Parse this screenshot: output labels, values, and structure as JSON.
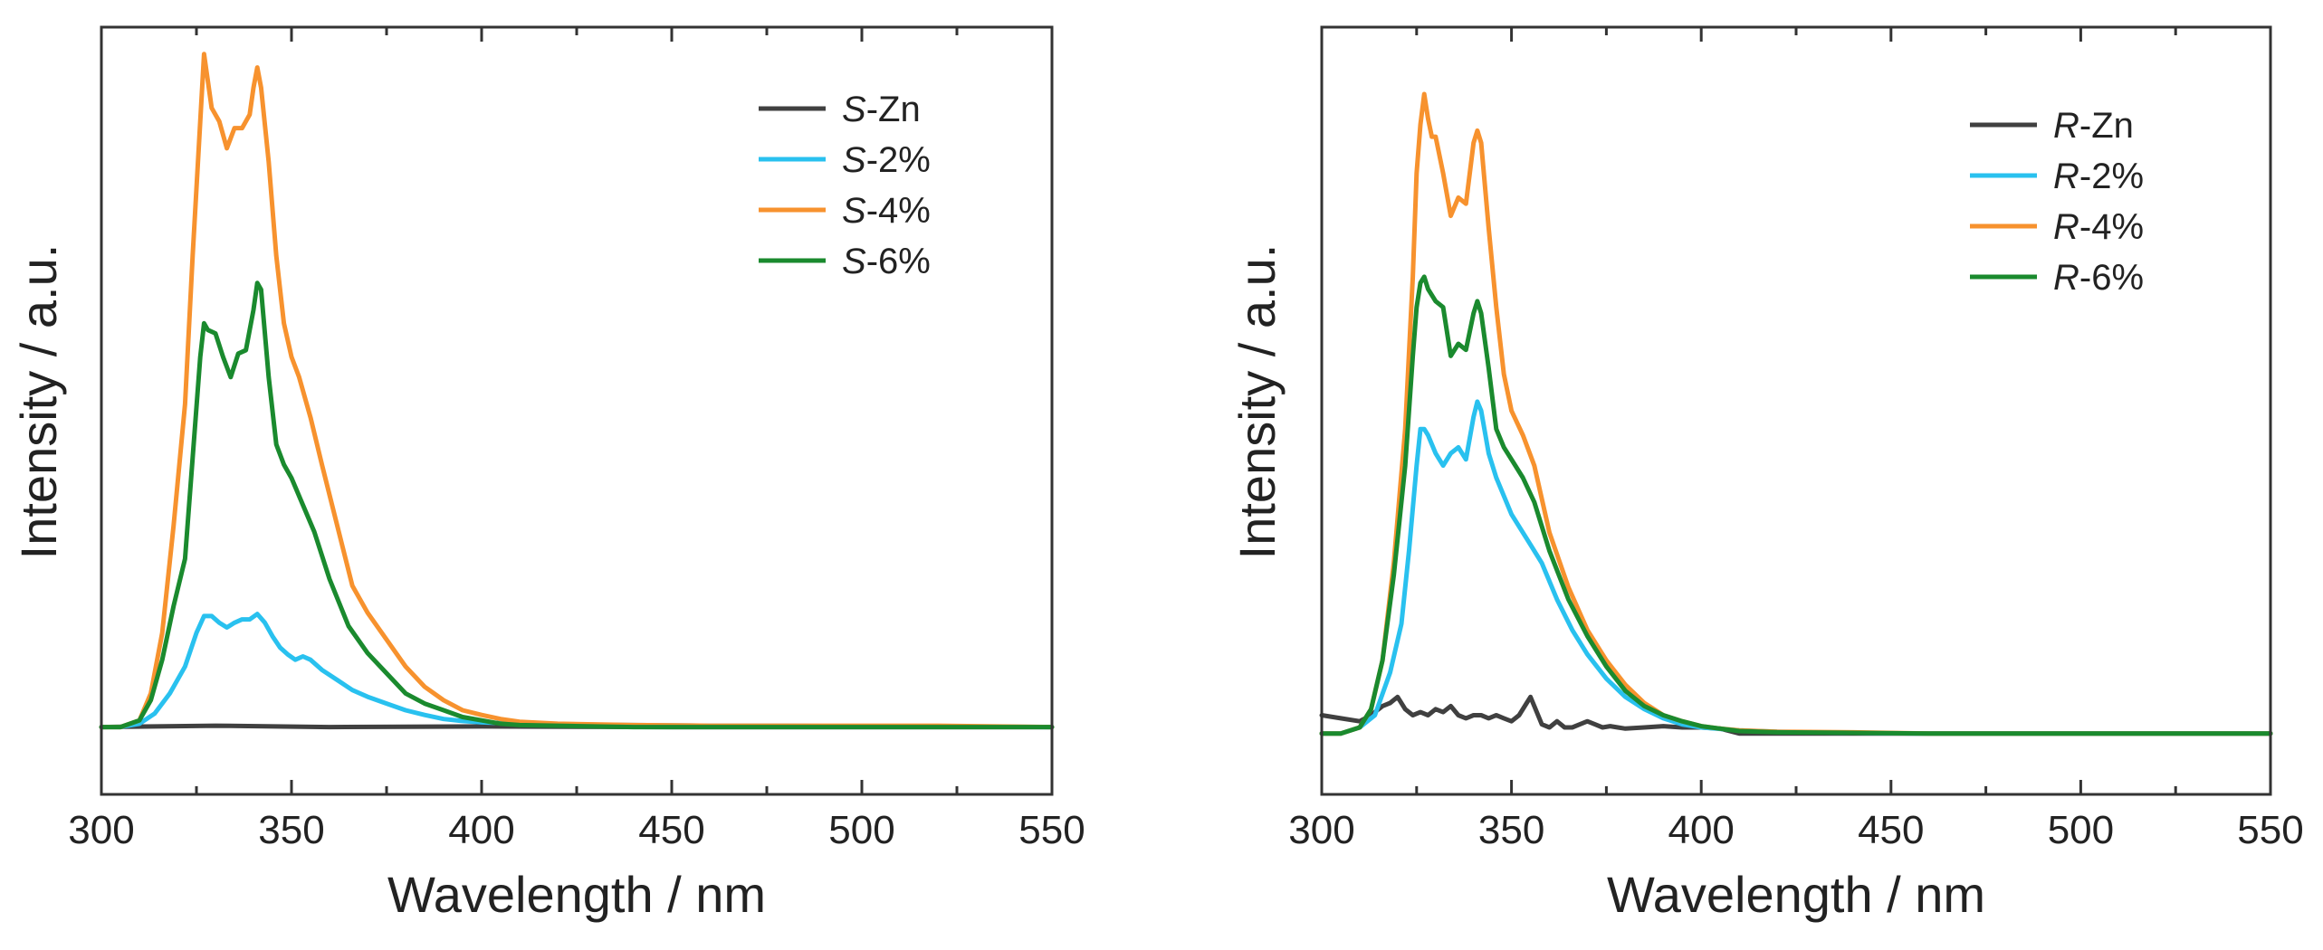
{
  "chart_data": [
    {
      "type": "line",
      "xlabel": "Wavelength / nm",
      "ylabel": "Intensity / a.u.",
      "xlim": [
        300,
        550
      ],
      "ylim": [
        -0.1,
        1.04
      ],
      "xticks": [
        "300",
        "350",
        "400",
        "450",
        "500",
        "550"
      ],
      "legend_position": "top-right",
      "series": [
        {
          "name": "Zn",
          "prefix": "S",
          "color": "#404040",
          "x": [
            300,
            330,
            360,
            400,
            450,
            500,
            550
          ],
          "y": [
            0.0,
            0.002,
            0.0,
            0.001,
            0.0,
            0.0,
            0.0
          ]
        },
        {
          "name": "2%",
          "prefix": "S",
          "color": "#29c1ef",
          "x": [
            300,
            305,
            310,
            314,
            318,
            322,
            325,
            327,
            329,
            331,
            333,
            335,
            337,
            339,
            341,
            343,
            345,
            347,
            349,
            351,
            353,
            355,
            358,
            362,
            366,
            370,
            375,
            380,
            385,
            390,
            395,
            400,
            410,
            420,
            440,
            460,
            480,
            500,
            520,
            550
          ],
          "y": [
            0.0,
            0.0,
            0.005,
            0.02,
            0.05,
            0.09,
            0.14,
            0.165,
            0.165,
            0.155,
            0.148,
            0.155,
            0.16,
            0.16,
            0.168,
            0.155,
            0.135,
            0.118,
            0.108,
            0.1,
            0.105,
            0.1,
            0.085,
            0.07,
            0.055,
            0.045,
            0.035,
            0.025,
            0.018,
            0.012,
            0.009,
            0.007,
            0.005,
            0.004,
            0.003,
            0.002,
            0.002,
            0.001,
            0.001,
            0.0
          ]
        },
        {
          "name": "4%",
          "prefix": "S",
          "color": "#f7922e",
          "x": [
            300,
            305,
            310,
            313,
            316,
            319,
            322,
            324,
            326,
            327,
            328,
            329,
            331,
            333,
            335,
            337,
            339,
            340,
            341,
            342,
            344,
            346,
            348,
            350,
            352,
            355,
            358,
            362,
            366,
            370,
            375,
            380,
            385,
            390,
            395,
            400,
            405,
            410,
            420,
            440,
            460,
            480,
            500,
            520,
            550
          ],
          "y": [
            0.0,
            0.0,
            0.01,
            0.05,
            0.14,
            0.3,
            0.48,
            0.7,
            0.9,
            1.0,
            0.96,
            0.92,
            0.9,
            0.86,
            0.89,
            0.89,
            0.91,
            0.95,
            0.98,
            0.95,
            0.84,
            0.7,
            0.6,
            0.55,
            0.52,
            0.46,
            0.39,
            0.3,
            0.21,
            0.17,
            0.13,
            0.09,
            0.06,
            0.04,
            0.025,
            0.018,
            0.012,
            0.008,
            0.005,
            0.003,
            0.002,
            0.002,
            0.002,
            0.002,
            0.0
          ]
        },
        {
          "name": "6%",
          "prefix": "S",
          "color": "#1a8a2e",
          "x": [
            300,
            305,
            310,
            313,
            316,
            319,
            322,
            324,
            326,
            327,
            328,
            330,
            332,
            334,
            336,
            338,
            340,
            341,
            342,
            344,
            346,
            348,
            350,
            353,
            356,
            360,
            365,
            370,
            375,
            380,
            385,
            390,
            395,
            400,
            405,
            410,
            420,
            440,
            460,
            480,
            500,
            520,
            550
          ],
          "y": [
            0.0,
            0.0,
            0.01,
            0.04,
            0.1,
            0.18,
            0.25,
            0.4,
            0.55,
            0.6,
            0.59,
            0.585,
            0.55,
            0.52,
            0.555,
            0.56,
            0.62,
            0.66,
            0.65,
            0.52,
            0.42,
            0.39,
            0.37,
            0.33,
            0.29,
            0.22,
            0.15,
            0.11,
            0.08,
            0.05,
            0.035,
            0.025,
            0.015,
            0.01,
            0.005,
            0.003,
            0.002,
            0.0,
            0.0,
            0.0,
            0.0,
            0.0,
            0.0
          ]
        }
      ]
    },
    {
      "type": "line",
      "xlabel": "Wavelength / nm",
      "ylabel": "Intensity / a.u.",
      "xlim": [
        300,
        550
      ],
      "ylim": [
        -0.1,
        1.16
      ],
      "xticks": [
        "300",
        "350",
        "400",
        "450",
        "500",
        "550"
      ],
      "legend_position": "top-right",
      "series": [
        {
          "name": "Zn",
          "prefix": "R",
          "color": "#404040",
          "x": [
            300,
            305,
            310,
            313,
            316,
            318,
            320,
            322,
            324,
            326,
            328,
            330,
            332,
            334,
            336,
            338,
            340,
            342,
            344,
            346,
            348,
            350,
            352,
            354,
            355,
            356,
            358,
            360,
            362,
            364,
            366,
            368,
            370,
            372,
            374,
            376,
            378,
            380,
            385,
            390,
            395,
            400,
            405,
            410,
            450,
            500,
            550
          ],
          "y": [
            0.03,
            0.025,
            0.02,
            0.03,
            0.045,
            0.05,
            0.06,
            0.04,
            0.03,
            0.035,
            0.03,
            0.04,
            0.035,
            0.045,
            0.03,
            0.025,
            0.03,
            0.03,
            0.025,
            0.03,
            0.025,
            0.02,
            0.03,
            0.05,
            0.06,
            0.045,
            0.015,
            0.01,
            0.02,
            0.01,
            0.01,
            0.015,
            0.02,
            0.015,
            0.01,
            0.012,
            0.01,
            0.008,
            0.01,
            0.012,
            0.01,
            0.01,
            0.008,
            0.0,
            0.0,
            0.0,
            0.0
          ]
        },
        {
          "name": "2%",
          "prefix": "R",
          "color": "#29c1ef",
          "x": [
            300,
            305,
            310,
            314,
            318,
            321,
            323,
            325,
            326,
            327,
            328,
            330,
            332,
            334,
            336,
            338,
            340,
            341,
            342,
            344,
            346,
            348,
            350,
            352,
            355,
            358,
            362,
            366,
            370,
            375,
            380,
            385,
            390,
            395,
            400,
            410,
            420,
            440,
            460,
            500,
            550
          ],
          "y": [
            0.0,
            0.0,
            0.01,
            0.03,
            0.1,
            0.18,
            0.3,
            0.44,
            0.5,
            0.5,
            0.49,
            0.46,
            0.44,
            0.46,
            0.47,
            0.45,
            0.52,
            0.545,
            0.53,
            0.46,
            0.42,
            0.39,
            0.36,
            0.34,
            0.31,
            0.28,
            0.22,
            0.17,
            0.13,
            0.09,
            0.06,
            0.04,
            0.025,
            0.015,
            0.01,
            0.005,
            0.003,
            0.001,
            0.0,
            0.0,
            0.0
          ]
        },
        {
          "name": "4%",
          "prefix": "R",
          "color": "#f7922e",
          "x": [
            300,
            305,
            310,
            313,
            316,
            319,
            322,
            324,
            325,
            326,
            327,
            328,
            329,
            330,
            332,
            334,
            336,
            338,
            340,
            341,
            342,
            344,
            346,
            348,
            350,
            353,
            356,
            360,
            365,
            370,
            375,
            380,
            385,
            390,
            395,
            400,
            405,
            410,
            420,
            440,
            460,
            500,
            550
          ],
          "y": [
            0.0,
            0.0,
            0.01,
            0.04,
            0.12,
            0.28,
            0.5,
            0.75,
            0.92,
            1.0,
            1.05,
            1.01,
            0.98,
            0.98,
            0.92,
            0.85,
            0.88,
            0.87,
            0.97,
            0.99,
            0.97,
            0.83,
            0.7,
            0.59,
            0.53,
            0.49,
            0.44,
            0.33,
            0.24,
            0.17,
            0.12,
            0.08,
            0.05,
            0.03,
            0.02,
            0.012,
            0.008,
            0.005,
            0.003,
            0.002,
            0.0,
            0.0,
            0.0
          ]
        },
        {
          "name": "6%",
          "prefix": "R",
          "color": "#1a8a2e",
          "x": [
            300,
            305,
            310,
            313,
            316,
            319,
            322,
            324,
            325,
            326,
            327,
            328,
            330,
            332,
            334,
            336,
            338,
            340,
            341,
            342,
            344,
            346,
            348,
            350,
            353,
            356,
            360,
            365,
            370,
            375,
            380,
            385,
            390,
            395,
            400,
            405,
            410,
            420,
            440,
            460,
            500,
            550
          ],
          "y": [
            0.0,
            0.0,
            0.01,
            0.04,
            0.12,
            0.26,
            0.44,
            0.62,
            0.7,
            0.74,
            0.75,
            0.73,
            0.71,
            0.7,
            0.62,
            0.64,
            0.63,
            0.69,
            0.71,
            0.69,
            0.6,
            0.5,
            0.47,
            0.45,
            0.42,
            0.38,
            0.3,
            0.22,
            0.16,
            0.11,
            0.07,
            0.045,
            0.03,
            0.02,
            0.012,
            0.008,
            0.004,
            0.002,
            0.001,
            0.0,
            0.0,
            0.0
          ]
        }
      ]
    }
  ]
}
